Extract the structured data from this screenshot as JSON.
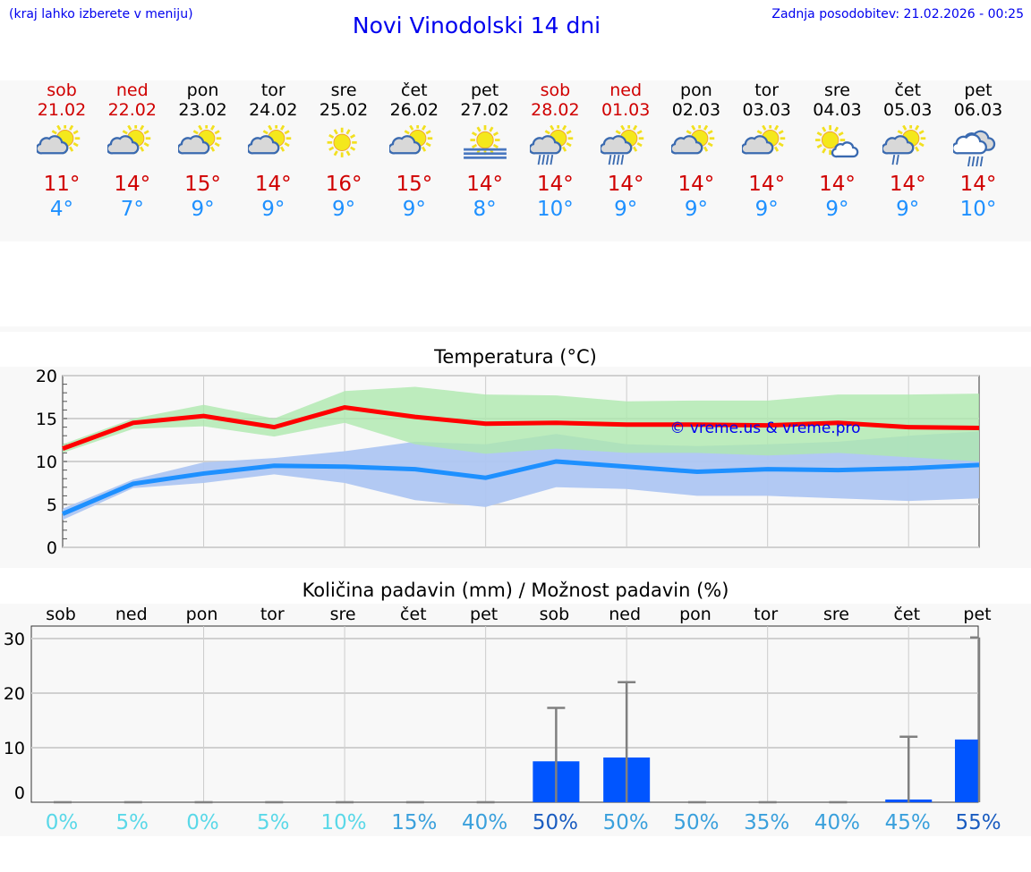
{
  "header": {
    "hint": "(kraj lahko izberete v meniju)",
    "title": "Novi Vinodolski 14 dni",
    "updated": "Zadnja posodobitev: 21.02.2026 - 00:25"
  },
  "colors": {
    "weekend": "#d00000",
    "weekday": "#000000",
    "max": "#ff0000",
    "min": "#1e90ff",
    "max_band": "#aee8ae",
    "min_band": "#aec6f2",
    "bar": "#0055ff",
    "whisker": "#808080"
  },
  "days": [
    {
      "name": "sob",
      "date": "21.02",
      "weekend": true,
      "icon": "sun-cloud",
      "max": "11°",
      "min": "4°"
    },
    {
      "name": "ned",
      "date": "22.02",
      "weekend": true,
      "icon": "sun-cloud",
      "max": "14°",
      "min": "7°"
    },
    {
      "name": "pon",
      "date": "23.02",
      "weekend": false,
      "icon": "sun-cloud",
      "max": "15°",
      "min": "9°"
    },
    {
      "name": "tor",
      "date": "24.02",
      "weekend": false,
      "icon": "sun-cloud",
      "max": "14°",
      "min": "9°"
    },
    {
      "name": "sre",
      "date": "25.02",
      "weekend": false,
      "icon": "sun",
      "max": "16°",
      "min": "9°"
    },
    {
      "name": "čet",
      "date": "26.02",
      "weekend": false,
      "icon": "sun-cloud",
      "max": "15°",
      "min": "9°"
    },
    {
      "name": "pet",
      "date": "27.02",
      "weekend": false,
      "icon": "sun-fog",
      "max": "14°",
      "min": "8°"
    },
    {
      "name": "sob",
      "date": "28.02",
      "weekend": true,
      "icon": "sun-cloud-rain",
      "max": "14°",
      "min": "10°"
    },
    {
      "name": "ned",
      "date": "01.03",
      "weekend": true,
      "icon": "sun-cloud-rain",
      "max": "14°",
      "min": "9°"
    },
    {
      "name": "pon",
      "date": "02.03",
      "weekend": false,
      "icon": "sun-cloud",
      "max": "14°",
      "min": "9°"
    },
    {
      "name": "tor",
      "date": "03.03",
      "weekend": false,
      "icon": "sun-cloud",
      "max": "14°",
      "min": "9°"
    },
    {
      "name": "sre",
      "date": "04.03",
      "weekend": false,
      "icon": "sun-small-cloud",
      "max": "14°",
      "min": "9°"
    },
    {
      "name": "čet",
      "date": "05.03",
      "weekend": false,
      "icon": "sun-cloud-light-rain",
      "max": "14°",
      "min": "9°"
    },
    {
      "name": "pet",
      "date": "06.03",
      "weekend": false,
      "icon": "cloud-rain",
      "max": "14°",
      "min": "10°"
    }
  ],
  "chart_data": [
    {
      "type": "line",
      "title": "Temperatura (°C)",
      "ylim": [
        0,
        20
      ],
      "yticks": [
        "0",
        "5",
        "10",
        "15",
        "20"
      ],
      "watermark": "© vreme.us & vreme.pro",
      "series": [
        {
          "name": "max",
          "values": [
            11.5,
            14.5,
            15.3,
            14.0,
            16.3,
            15.2,
            14.4,
            14.5,
            14.3,
            14.3,
            14.2,
            14.5,
            14.0,
            13.9
          ],
          "band_high": [
            12.0,
            15.0,
            16.6,
            15.0,
            18.2,
            18.7,
            17.8,
            17.7,
            17.0,
            17.1,
            17.1,
            17.8,
            17.8,
            17.9
          ],
          "band_low": [
            11.0,
            13.8,
            14.1,
            12.9,
            14.5,
            12.0,
            10.9,
            11.5,
            11.0,
            11.0,
            10.7,
            11.0,
            10.5,
            10.0
          ]
        },
        {
          "name": "min",
          "values": [
            3.9,
            7.4,
            8.6,
            9.5,
            9.4,
            9.1,
            8.1,
            10.0,
            9.4,
            8.8,
            9.1,
            9.0,
            9.2,
            9.6
          ],
          "band_high": [
            4.5,
            7.9,
            9.9,
            10.4,
            11.2,
            12.3,
            12.0,
            13.2,
            12.0,
            11.8,
            12.0,
            12.3,
            13.0,
            13.5
          ],
          "band_low": [
            3.2,
            6.9,
            7.5,
            8.5,
            7.5,
            5.5,
            4.7,
            7.0,
            6.8,
            6.0,
            6.0,
            5.7,
            5.4,
            5.7
          ]
        }
      ]
    },
    {
      "type": "bar",
      "title": "Količina padavin (mm) / Možnost padavin (%)",
      "ylim": [
        0,
        30
      ],
      "yticks": [
        "0",
        "10",
        "20",
        "30"
      ],
      "categories": [
        "sob",
        "ned",
        "pon",
        "tor",
        "sre",
        "čet",
        "pet",
        "sob",
        "ned",
        "pon",
        "tor",
        "sre",
        "čet",
        "pet"
      ],
      "values": [
        0,
        0,
        0,
        0,
        0,
        0,
        0,
        7.5,
        8.2,
        0,
        0,
        0,
        0.5,
        11.5
      ],
      "max_values": [
        0,
        0,
        0,
        0,
        0,
        0,
        0,
        17.3,
        22.0,
        0,
        0,
        0,
        12.0,
        30.2
      ],
      "probability": [
        "0%",
        "5%",
        "0%",
        "5%",
        "10%",
        "15%",
        "40%",
        "50%",
        "50%",
        "50%",
        "35%",
        "40%",
        "45%",
        "55%"
      ],
      "probability_colors": [
        "#5ad8e8",
        "#5ad8e8",
        "#5ad8e8",
        "#5ad8e8",
        "#5ad8e8",
        "#3aa0dc",
        "#3aa0dc",
        "#1a5cc0",
        "#3aa0dc",
        "#3aa0dc",
        "#3aa0dc",
        "#3aa0dc",
        "#3aa0dc",
        "#1a5cc0"
      ]
    }
  ]
}
